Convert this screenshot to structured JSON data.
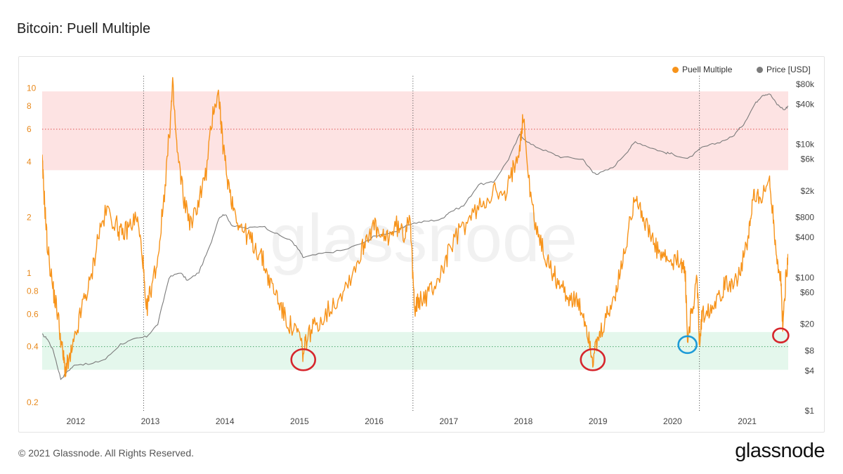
{
  "title": "Bitcoin: Puell Multiple",
  "footer": {
    "copyright": "© 2021 Glassnode. All Rights Reserved.",
    "brand": "glassnode",
    "watermark": "glassnode"
  },
  "colors": {
    "puell": "#f7931a",
    "price": "#7b7b7b",
    "high_band": "#fde3e3",
    "low_band": "#e4f7ec",
    "circle_red": "#d6262c",
    "circle_blue": "#1e9bd7"
  },
  "chart_data": {
    "type": "line",
    "title": "Bitcoin: Puell Multiple",
    "legend": {
      "position": "top-right",
      "entries": [
        "Puell Multiple",
        "Price [USD]"
      ]
    },
    "x_ticks": [
      "2012",
      "2013",
      "2014",
      "2015",
      "2016",
      "2017",
      "2018",
      "2019",
      "2020",
      "2021"
    ],
    "x_range": [
      2011.55,
      2021.55
    ],
    "y_left": {
      "scale": "log",
      "range": [
        0.18,
        12.5
      ],
      "ticks": [
        "10",
        "8",
        "6",
        "4",
        "2",
        "1",
        "0.8",
        "0.6",
        "0.4",
        "0.2"
      ]
    },
    "y_right": {
      "scale": "log",
      "range": [
        1,
        130000
      ],
      "ticks": [
        "$80k",
        "$40k",
        "$10k",
        "$6k",
        "$2k",
        "$800",
        "$400",
        "$100",
        "$60",
        "$20",
        "$8",
        "$4",
        "$1"
      ]
    },
    "bands": [
      {
        "name": "high",
        "from": 3.6,
        "to": 9.6,
        "reference": 6
      },
      {
        "name": "low",
        "from": 0.3,
        "to": 0.48,
        "reference": 0.4
      }
    ],
    "halving_dates": [
      2012.91,
      2016.52,
      2020.36
    ],
    "annotations": [
      {
        "shape": "circle",
        "color": "red",
        "x": 2015.05,
        "y": 0.34
      },
      {
        "shape": "circle",
        "color": "red",
        "x": 2018.93,
        "y": 0.34
      },
      {
        "shape": "circle",
        "color": "blue",
        "x": 2020.2,
        "y": 0.41
      },
      {
        "shape": "circle",
        "color": "red",
        "x": 2021.45,
        "y": 0.46
      }
    ],
    "series": [
      {
        "name": "Puell Multiple",
        "axis": "left",
        "x": [
          2011.55,
          2011.58,
          2011.62,
          2011.7,
          2011.76,
          2011.82,
          2011.86,
          2011.92,
          2012.0,
          2012.1,
          2012.2,
          2012.3,
          2012.42,
          2012.55,
          2012.62,
          2012.72,
          2012.82,
          2012.9,
          2012.94,
          2013.0,
          2013.1,
          2013.18,
          2013.26,
          2013.3,
          2013.36,
          2013.45,
          2013.55,
          2013.65,
          2013.75,
          2013.85,
          2013.92,
          2013.96,
          2014.02,
          2014.1,
          2014.2,
          2014.3,
          2014.4,
          2014.5,
          2014.6,
          2014.7,
          2014.8,
          2014.9,
          2015.0,
          2015.05,
          2015.1,
          2015.2,
          2015.35,
          2015.5,
          2015.65,
          2015.8,
          2015.9,
          2016.0,
          2016.1,
          2016.2,
          2016.3,
          2016.4,
          2016.48,
          2016.52,
          2016.55,
          2016.6,
          2016.7,
          2016.8,
          2016.9,
          2017.0,
          2017.15,
          2017.3,
          2017.45,
          2017.6,
          2017.75,
          2017.85,
          2017.95,
          2018.0,
          2018.1,
          2018.2,
          2018.3,
          2018.4,
          2018.5,
          2018.6,
          2018.7,
          2018.8,
          2018.88,
          2018.93,
          2019.0,
          2019.1,
          2019.2,
          2019.3,
          2019.4,
          2019.5,
          2019.6,
          2019.7,
          2019.8,
          2019.9,
          2020.0,
          2020.1,
          2020.17,
          2020.2,
          2020.25,
          2020.33,
          2020.36,
          2020.4,
          2020.5,
          2020.6,
          2020.7,
          2020.8,
          2020.9,
          2021.0,
          2021.05,
          2021.1,
          2021.2,
          2021.3,
          2021.35,
          2021.4,
          2021.45,
          2021.48,
          2021.52,
          2021.55
        ],
        "values": [
          4.0,
          2.5,
          1.4,
          0.8,
          0.6,
          0.38,
          0.3,
          0.34,
          0.45,
          0.7,
          0.9,
          1.6,
          2.2,
          1.8,
          1.6,
          1.8,
          2.0,
          1.2,
          0.6,
          0.8,
          1.2,
          2.5,
          6.0,
          10.2,
          4.5,
          2.5,
          1.8,
          2.5,
          3.5,
          8.0,
          9.2,
          5.5,
          3.5,
          2.4,
          1.8,
          1.6,
          1.4,
          1.2,
          0.9,
          0.75,
          0.58,
          0.5,
          0.46,
          0.36,
          0.45,
          0.52,
          0.6,
          0.72,
          0.9,
          1.2,
          1.6,
          1.8,
          1.5,
          1.6,
          1.8,
          1.6,
          2.2,
          0.9,
          0.65,
          0.7,
          0.75,
          0.85,
          1.0,
          1.3,
          1.7,
          2.0,
          2.4,
          2.8,
          2.5,
          3.5,
          5.0,
          7.0,
          2.5,
          1.6,
          1.2,
          1.0,
          0.85,
          0.75,
          0.7,
          0.6,
          0.45,
          0.34,
          0.42,
          0.55,
          0.7,
          1.0,
          1.6,
          2.8,
          2.0,
          1.6,
          1.3,
          1.2,
          1.1,
          1.2,
          1.0,
          0.43,
          0.6,
          0.9,
          0.43,
          0.6,
          0.65,
          0.75,
          0.85,
          0.9,
          1.0,
          1.4,
          2.0,
          2.8,
          2.5,
          3.2,
          2.0,
          1.2,
          0.9,
          0.5,
          1.0,
          1.2
        ]
      },
      {
        "name": "Price [USD]",
        "axis": "right",
        "x": [
          2011.55,
          2011.62,
          2011.7,
          2011.8,
          2011.9,
          2012.0,
          2012.2,
          2012.4,
          2012.6,
          2012.8,
          2012.95,
          2013.1,
          2013.25,
          2013.4,
          2013.5,
          2013.65,
          2013.8,
          2013.92,
          2014.0,
          2014.1,
          2014.3,
          2014.5,
          2014.7,
          2014.9,
          2015.0,
          2015.05,
          2015.3,
          2015.6,
          2015.9,
          2016.0,
          2016.3,
          2016.5,
          2016.7,
          2016.9,
          2017.0,
          2017.2,
          2017.4,
          2017.6,
          2017.8,
          2017.95,
          2018.1,
          2018.3,
          2018.5,
          2018.8,
          2018.93,
          2019.0,
          2019.2,
          2019.4,
          2019.5,
          2019.7,
          2019.9,
          2020.0,
          2020.2,
          2020.4,
          2020.6,
          2020.8,
          2020.95,
          2021.1,
          2021.2,
          2021.3,
          2021.4,
          2021.5,
          2021.55
        ],
        "values": [
          14,
          12,
          8,
          3,
          4,
          5,
          5,
          6,
          10,
          12,
          13,
          20,
          100,
          120,
          90,
          120,
          300,
          800,
          900,
          600,
          550,
          600,
          450,
          350,
          250,
          200,
          230,
          260,
          350,
          420,
          500,
          650,
          700,
          750,
          950,
          1200,
          2500,
          2700,
          6000,
          14000,
          10000,
          8000,
          6500,
          6000,
          3800,
          3600,
          4500,
          8000,
          11000,
          9000,
          7500,
          7200,
          6000,
          9000,
          10500,
          13000,
          20000,
          40000,
          55000,
          58000,
          40000,
          33000,
          38000
        ]
      }
    ]
  }
}
